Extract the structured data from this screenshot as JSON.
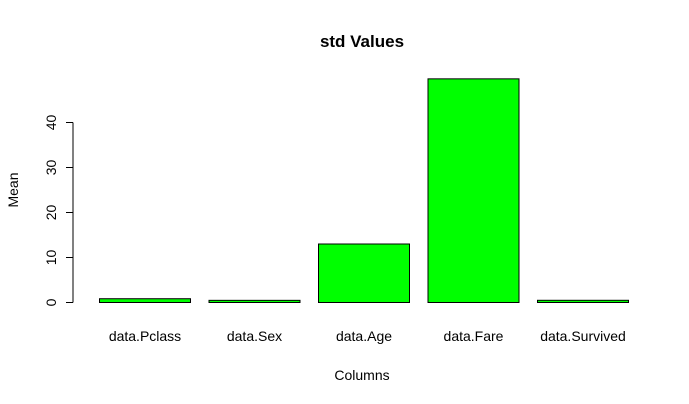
{
  "chart_data": {
    "type": "bar",
    "title": "std Values",
    "xlabel": "Columns",
    "ylabel": "Mean",
    "categories": [
      "data.Pclass",
      "data.Sex",
      "data.Age",
      "data.Fare",
      "data.Survived"
    ],
    "values": [
      0.84,
      0.48,
      13.0,
      49.7,
      0.49
    ],
    "yticks": [
      0,
      10,
      20,
      30,
      40
    ],
    "ylim": [
      0,
      50
    ],
    "grid": false,
    "bar_color": "#00ff00",
    "bar_stroke": "#000000"
  }
}
